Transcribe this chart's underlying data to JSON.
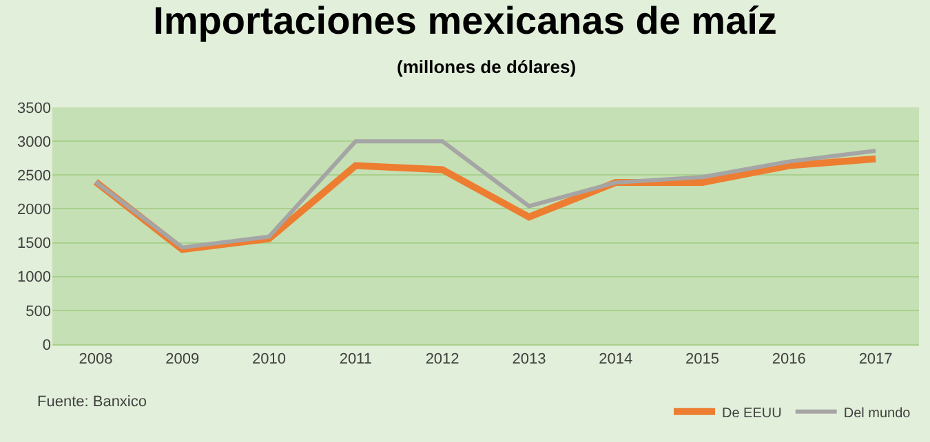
{
  "chart_data": {
    "type": "line",
    "title": "Importaciones mexicanas de maíz",
    "subtitle": "(millones de dólares)",
    "categories": [
      "2008",
      "2009",
      "2010",
      "2011",
      "2012",
      "2013",
      "2014",
      "2015",
      "2016",
      "2017"
    ],
    "series": [
      {
        "name": "De EEUU",
        "color": "#ed7d31",
        "values": [
          2400,
          1400,
          1560,
          2640,
          2580,
          1880,
          2390,
          2390,
          2640,
          2740
        ]
      },
      {
        "name": "Del mundo",
        "color": "#a5a5a5",
        "values": [
          2400,
          1430,
          1590,
          3000,
          3000,
          2040,
          2390,
          2470,
          2700,
          2860
        ]
      }
    ],
    "ylim": [
      0,
      3500
    ],
    "yticks": [
      0,
      500,
      1000,
      1500,
      2000,
      2500,
      3000,
      3500
    ],
    "grid": "y",
    "legend": "bottom right",
    "marker": "none",
    "line_style": "solid",
    "annotations": [
      "Fuente: Banxico"
    ]
  }
}
